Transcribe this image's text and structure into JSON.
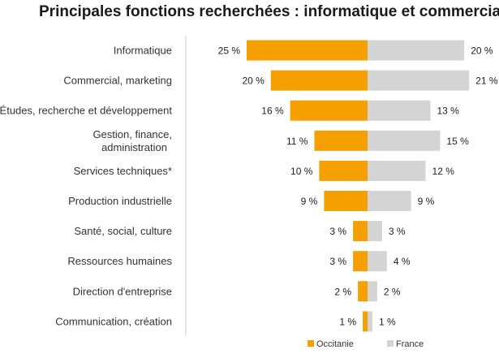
{
  "chart_data": {
    "type": "bar",
    "title": "Principales fonctions recherchées : informatique et commercial",
    "orientation": "horizontal-diverging",
    "categories": [
      [
        "Informatique"
      ],
      [
        "Commercial, marketing"
      ],
      [
        "Études, recherche et développement"
      ],
      [
        "Gestion, finance,",
        "administration"
      ],
      [
        "Services techniques*"
      ],
      [
        "Production industrielle"
      ],
      [
        "Santé, social, culture"
      ],
      [
        "Ressources humaines"
      ],
      [
        "Direction d'entreprise"
      ],
      [
        "Communication, création"
      ]
    ],
    "series": [
      {
        "name": "Occitanie",
        "color": "#F5A000",
        "side": "left",
        "values": [
          25,
          20,
          16,
          11,
          10,
          9,
          3,
          3,
          2,
          1
        ],
        "labels": [
          "25 %",
          "20 %",
          "16 %",
          "11 %",
          "10 %",
          "9 %",
          "3 %",
          "3 %",
          "2 %",
          "1 %"
        ]
      },
      {
        "name": "France",
        "color": "#D4D4D4",
        "side": "right",
        "values": [
          20,
          21,
          13,
          15,
          12,
          9,
          3,
          4,
          2,
          1
        ],
        "labels": [
          "20 %",
          "21 %",
          "13 %",
          "15 %",
          "12 %",
          "9 %",
          "3 %",
          "4 %",
          "2 %",
          "1 %"
        ]
      }
    ],
    "axis_color": "#CCCCCC",
    "legend": "bottom-center"
  }
}
